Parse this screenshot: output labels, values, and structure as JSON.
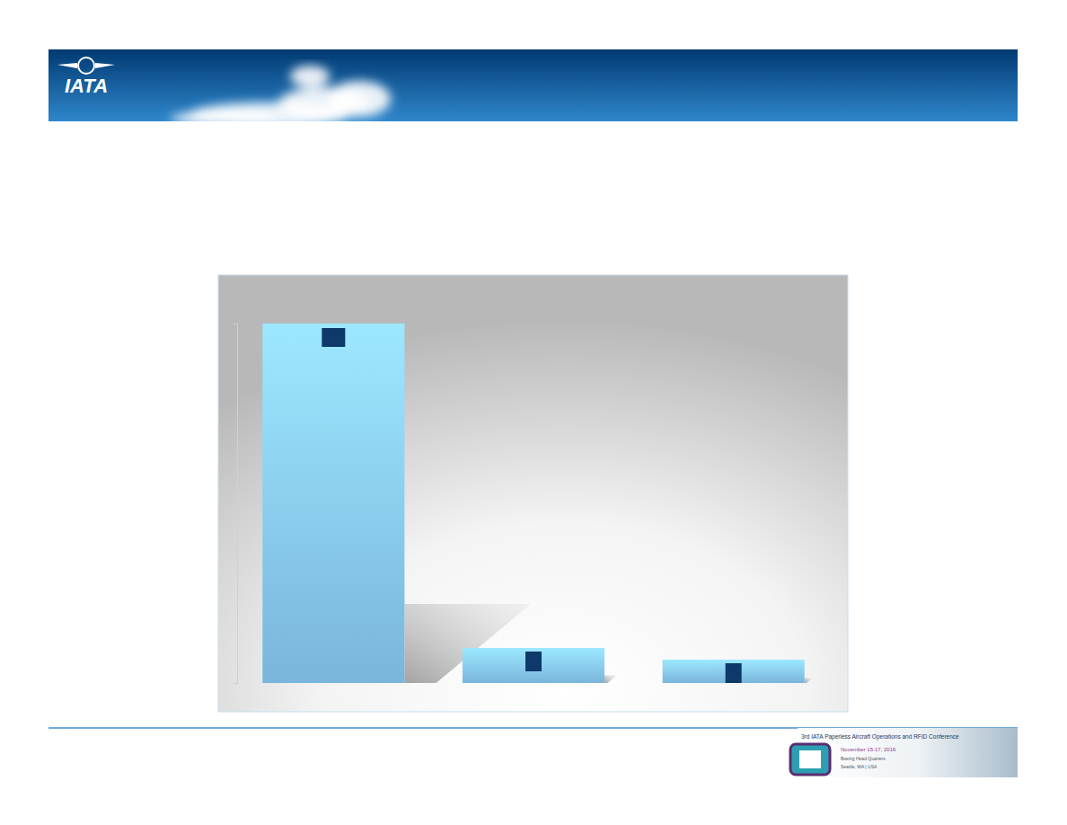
{
  "chart_data": {
    "type": "bar",
    "categories": [
      null,
      null,
      null
    ],
    "values": [
      100,
      9.75,
      6.5
    ],
    "color": "#85c6ef",
    "ylim": [
      0,
      100
    ],
    "yticks": [
      0,
      100
    ],
    "grid": false,
    "tick_labels": false
  },
  "header": {
    "logo": "IATA"
  },
  "footer": {
    "conference": "3rd IATA Paperless Aircraft Operations and RFID Conference",
    "dates": "November 15-17, 2016",
    "venue": "Boeing Head Quarters",
    "location": "Seattle, WA | USA"
  }
}
